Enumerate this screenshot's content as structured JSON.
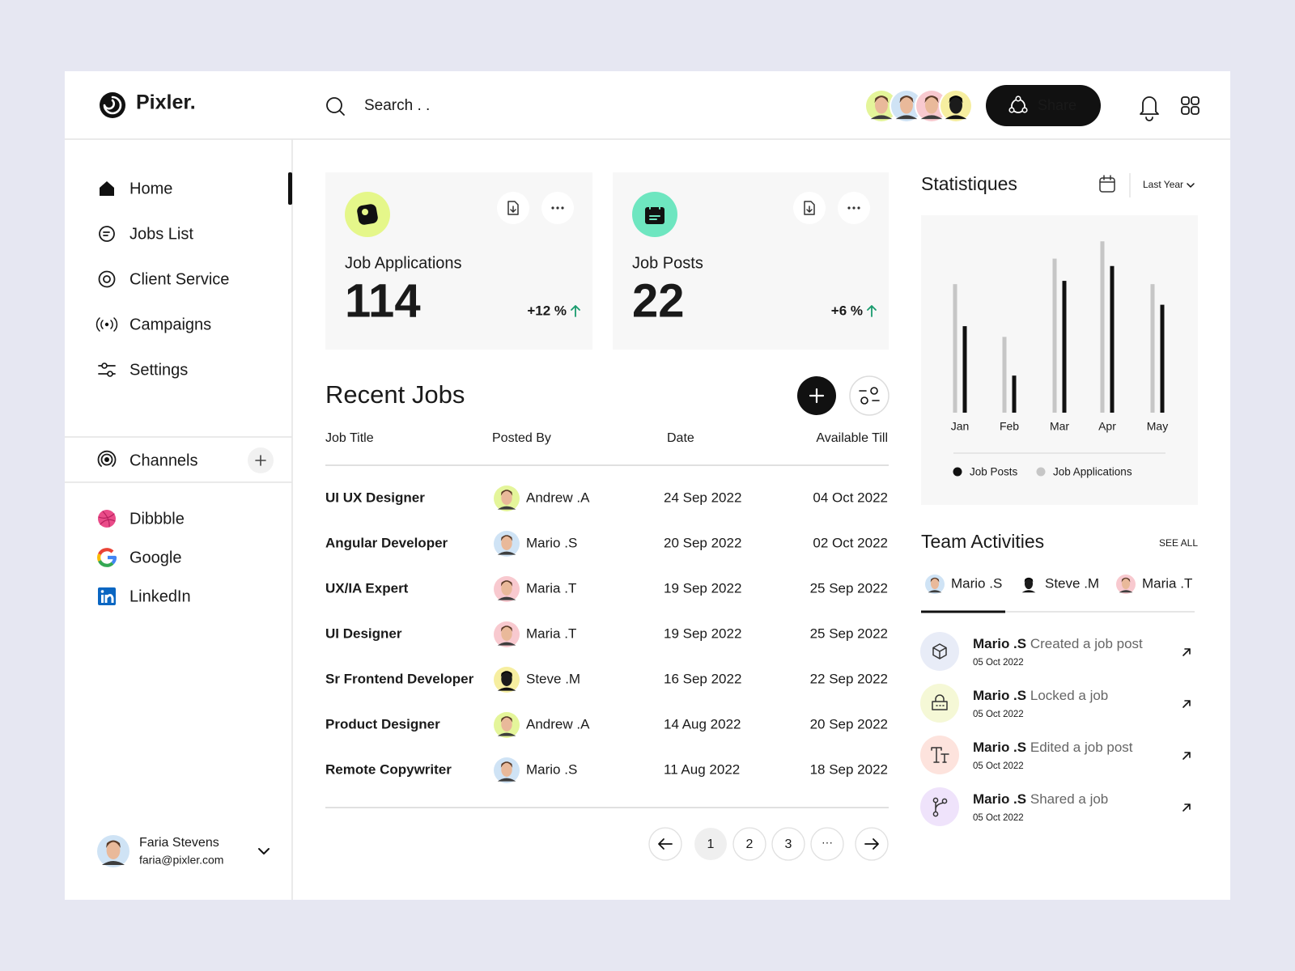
{
  "header": {
    "brand": "Pixler.",
    "search_placeholder": "Search . .",
    "share_label": "Share"
  },
  "sidebar": {
    "nav": [
      "Home",
      "Jobs List",
      "Client Service",
      "Campaigns",
      "Settings"
    ],
    "channels_title": "Channels",
    "channels": [
      "Dibbble",
      "Google",
      "LinkedIn"
    ],
    "user": {
      "name": "Faria Stevens",
      "email": "faria@pixler.com"
    }
  },
  "cards": [
    {
      "label": "Job Applications",
      "value": 114,
      "change": "+12 %"
    },
    {
      "label": "Job Posts",
      "value": 22,
      "change": "+6 %"
    }
  ],
  "recent_jobs": {
    "title": "Recent Jobs",
    "columns": [
      "Job Title",
      "Posted By",
      "Date",
      "Available Till"
    ],
    "rows": [
      [
        "UI UX Designer",
        "Andrew .A",
        "24 Sep 2022",
        "04 Oct 2022"
      ],
      [
        "Angular Developer",
        "Mario .S",
        "20 Sep 2022",
        "02 Oct 2022"
      ],
      [
        "UX/IA Expert",
        "Maria .T",
        "19 Sep 2022",
        "25 Sep 2022"
      ],
      [
        "UI Designer",
        "Maria .T",
        "19 Sep 2022",
        "25 Sep 2022"
      ],
      [
        "Sr Frontend Developer",
        "Steve .M",
        "16 Sep 2022",
        "22 Sep 2022"
      ],
      [
        "Product Designer",
        "Andrew .A",
        "14 Aug 2022",
        "20 Sep 2022"
      ],
      [
        "Remote Copywriter",
        "Mario .S",
        "11 Aug 2022",
        "18 Sep 2022"
      ]
    ]
  },
  "pagination": {
    "pages": [
      1,
      2,
      3
    ],
    "more": "···"
  },
  "statistics": {
    "title": "Statistiques",
    "period": "Last Year",
    "chart_data": {
      "type": "bar",
      "categories": [
        "Jan",
        "Feb",
        "Mar",
        "Apr",
        "May"
      ],
      "series": [
        {
          "name": "Job Posts",
          "color": "#111111",
          "values": [
            105,
            45,
            160,
            178,
            131
          ]
        },
        {
          "name": "Job Applications",
          "color": "#c6c6c6",
          "values": [
            156,
            92,
            187,
            208,
            156
          ]
        }
      ],
      "ylim": [
        0,
        220
      ]
    }
  },
  "team_activities": {
    "title": "Team Activities",
    "see_all": "SEE ALL",
    "tabs": [
      "Mario .S",
      "Steve .M",
      "Maria .T"
    ],
    "items": [
      {
        "actor": "Mario .S",
        "action": "Created a job post",
        "date": "05 Oct 2022"
      },
      {
        "actor": "Mario .S",
        "action": "Locked a job",
        "date": "05 Oct 2022"
      },
      {
        "actor": "Mario .S",
        "action": "Edited a job post",
        "date": "05 Oct 2022"
      },
      {
        "actor": "Mario .S",
        "action": "Shared a job",
        "date": "05 Oct 2022"
      }
    ]
  }
}
